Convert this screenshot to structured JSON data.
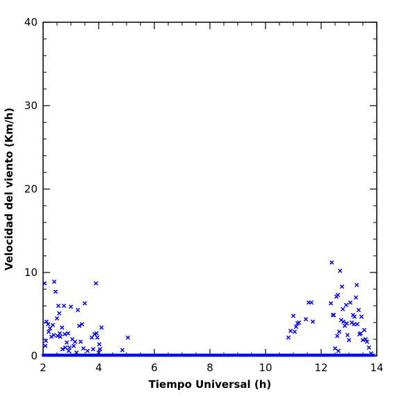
{
  "chart_data": {
    "type": "scatter",
    "title": "",
    "xlabel": "Tiempo Universal (h)",
    "ylabel": "Velocidad del viento (Km/h)",
    "xlim": [
      2,
      14
    ],
    "ylim": [
      0,
      40
    ],
    "x_ticks": [
      "2",
      "4",
      "6",
      "8",
      "10",
      "12",
      "14"
    ],
    "y_ticks": [
      "0",
      "10",
      "20",
      "30",
      "40"
    ],
    "grid": false,
    "marker": "x",
    "series_color": "#0000ff",
    "axis_color": "#000000",
    "series": [
      {
        "points": [
          [
            2.05,
            8.7
          ],
          [
            2.08,
            1.2
          ],
          [
            2.1,
            1.8
          ],
          [
            2.12,
            4.1
          ],
          [
            2.18,
            3.8
          ],
          [
            2.2,
            2.9
          ],
          [
            2.25,
            3.3
          ],
          [
            2.3,
            2.3
          ],
          [
            2.35,
            3.7
          ],
          [
            2.38,
            2.5
          ],
          [
            2.4,
            8.9
          ],
          [
            2.45,
            7.7
          ],
          [
            2.5,
            4.5
          ],
          [
            2.52,
            2.4
          ],
          [
            2.55,
            6.0
          ],
          [
            2.58,
            5.1
          ],
          [
            2.6,
            2.7
          ],
          [
            2.62,
            2.3
          ],
          [
            2.68,
            3.4
          ],
          [
            2.7,
            0.8
          ],
          [
            2.75,
            6.0
          ],
          [
            2.78,
            2.6
          ],
          [
            2.8,
            1.0
          ],
          [
            2.85,
            1.6
          ],
          [
            2.9,
            2.7
          ],
          [
            2.92,
            0.6
          ],
          [
            2.95,
            1.0
          ],
          [
            3.0,
            5.9
          ],
          [
            3.05,
            2.0
          ],
          [
            3.1,
            1.2
          ],
          [
            3.15,
            1.7
          ],
          [
            3.2,
            0.4
          ],
          [
            3.25,
            5.5
          ],
          [
            3.3,
            3.6
          ],
          [
            3.35,
            1.7
          ],
          [
            3.4,
            3.8
          ],
          [
            3.45,
            0.9
          ],
          [
            3.5,
            6.3
          ],
          [
            3.6,
            0.6
          ],
          [
            3.75,
            2.2
          ],
          [
            3.8,
            0.8
          ],
          [
            3.85,
            2.6
          ],
          [
            3.9,
            8.7
          ],
          [
            3.92,
            2.7
          ],
          [
            3.95,
            2.2
          ],
          [
            4.0,
            0.4
          ],
          [
            4.02,
            1.4
          ],
          [
            4.05,
            0.8
          ],
          [
            4.1,
            3.4
          ],
          [
            4.85,
            0.7
          ],
          [
            5.05,
            2.2
          ],
          [
            10.82,
            2.2
          ],
          [
            10.9,
            3.0
          ],
          [
            11.0,
            4.8
          ],
          [
            11.05,
            2.9
          ],
          [
            11.1,
            3.5
          ],
          [
            11.15,
            3.9
          ],
          [
            11.2,
            4.0
          ],
          [
            11.45,
            4.4
          ],
          [
            11.55,
            6.4
          ],
          [
            11.65,
            6.4
          ],
          [
            11.7,
            4.1
          ],
          [
            12.35,
            6.3
          ],
          [
            12.38,
            11.2
          ],
          [
            12.42,
            4.9
          ],
          [
            12.45,
            4.9
          ],
          [
            12.5,
            0.9
          ],
          [
            12.55,
            7.1
          ],
          [
            12.58,
            2.4
          ],
          [
            12.6,
            7.3
          ],
          [
            12.62,
            0.6
          ],
          [
            12.65,
            2.9
          ],
          [
            12.68,
            10.2
          ],
          [
            12.72,
            4.3
          ],
          [
            12.75,
            8.3
          ],
          [
            12.78,
            5.6
          ],
          [
            12.8,
            4.1
          ],
          [
            12.85,
            3.6
          ],
          [
            12.9,
            6.1
          ],
          [
            12.92,
            3.9
          ],
          [
            12.95,
            2.5
          ],
          [
            13.0,
            1.9
          ],
          [
            13.05,
            6.4
          ],
          [
            13.1,
            4.0
          ],
          [
            13.15,
            4.9
          ],
          [
            13.18,
            3.8
          ],
          [
            13.2,
            4.7
          ],
          [
            13.25,
            7.0
          ],
          [
            13.28,
            8.5
          ],
          [
            13.3,
            3.8
          ],
          [
            13.35,
            5.5
          ],
          [
            13.38,
            2.6
          ],
          [
            13.42,
            2.7
          ],
          [
            13.45,
            4.7
          ],
          [
            13.5,
            1.9
          ],
          [
            13.55,
            3.1
          ],
          [
            13.6,
            2.0
          ],
          [
            13.65,
            1.7
          ],
          [
            13.72,
            1.0
          ],
          [
            13.8,
            0.3
          ]
        ]
      }
    ]
  }
}
